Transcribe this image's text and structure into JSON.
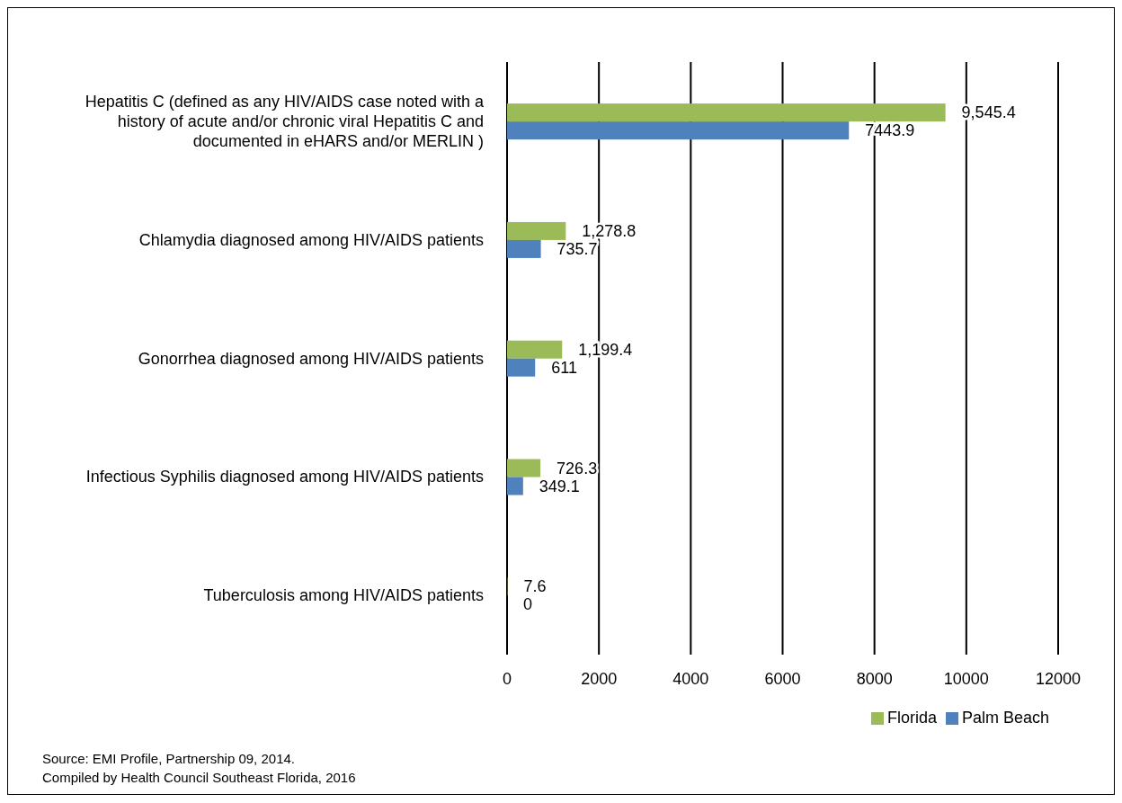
{
  "chart_data": {
    "type": "bar",
    "orientation": "horizontal",
    "categories": [
      "Hepatitis C (defined as any HIV/AIDS case noted with a history of acute and/or chronic viral Hepatitis C and documented in eHARS and/or MERLIN )",
      "Chlamydia diagnosed among HIV/AIDS patients",
      "Gonorrhea diagnosed among HIV/AIDS patients",
      "Infectious Syphilis diagnosed among HIV/AIDS patients",
      "Tuberculosis among HIV/AIDS patients"
    ],
    "series": [
      {
        "name": "Florida",
        "color": "#9bbb59",
        "values": [
          9545.4,
          1278.8,
          1199.4,
          726.3,
          7.6
        ],
        "value_labels": [
          "9,545.4",
          "1,278.8",
          "1,199.4",
          "726.3",
          "7.6"
        ]
      },
      {
        "name": "Palm Beach",
        "color": "#4f81bd",
        "values": [
          7443.9,
          735.7,
          611,
          349.1,
          0
        ],
        "value_labels": [
          "7443.9",
          "735.7",
          "611",
          "349.1",
          "0"
        ]
      }
    ],
    "xlim": [
      0,
      12000
    ],
    "xticks": [
      0,
      2000,
      4000,
      6000,
      8000,
      10000,
      12000
    ],
    "grid": "x",
    "legend": "bottom",
    "annotations": [
      "Source: EMI Profile, Partnership 09, 2014.",
      "Compiled by Health Council Southeast Florida, 2016"
    ]
  }
}
